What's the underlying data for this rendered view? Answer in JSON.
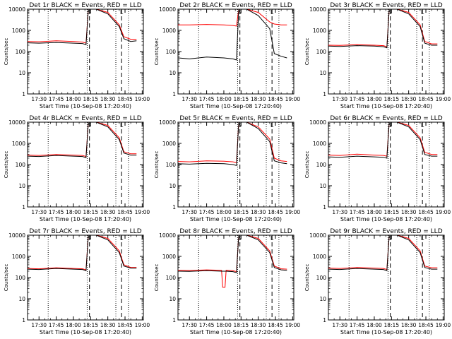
{
  "chart_data": [
    {
      "type": "line",
      "title": "Det 1r BLACK = Events, RED = LLD",
      "xlabel": "Start Time (10-Sep-08 17:20:40)",
      "ylabel": "Counts/sec",
      "yscale": "log",
      "ylim": [
        1,
        10000
      ],
      "x_ticks": [
        "17:30",
        "17:45",
        "18:00",
        "18:15",
        "18:30",
        "18:45",
        "19:00"
      ],
      "y_ticks": [
        "1",
        "10",
        "100",
        "1000",
        "10000"
      ],
      "markers": [
        "S",
        "L"
      ],
      "grid": false,
      "legend": "none",
      "series": [
        {
          "name": "Events",
          "color": "#000000",
          "x": [
            "17:20",
            "17:30",
            "17:45",
            "18:00",
            "18:08",
            "18:11",
            "18:13",
            "18:20",
            "18:30",
            "18:40",
            "18:44",
            "18:50",
            "18:55"
          ],
          "values": [
            260,
            250,
            270,
            250,
            240,
            210,
            10000,
            10000,
            6000,
            1500,
            400,
            300,
            320
          ]
        },
        {
          "name": "LLD",
          "color": "#ff0000",
          "x": [
            "17:20",
            "17:30",
            "17:45",
            "18:00",
            "18:08",
            "18:11",
            "18:13",
            "18:20",
            "18:30",
            "18:40",
            "18:44",
            "18:50",
            "18:55"
          ],
          "values": [
            300,
            290,
            320,
            300,
            280,
            250,
            10000,
            10000,
            7000,
            1800,
            500,
            380,
            380
          ]
        }
      ]
    },
    {
      "type": "line",
      "title": "Det 2r BLACK = Events, RED = LLD",
      "xlabel": "Start Time (10-Sep-08 17:20:40)",
      "ylabel": "Counts/sec",
      "yscale": "log",
      "ylim": [
        1,
        10000
      ],
      "x_ticks": [
        "17:30",
        "17:45",
        "18:00",
        "18:15",
        "18:30",
        "18:45",
        "19:00"
      ],
      "y_ticks": [
        "1",
        "10",
        "100",
        "1000",
        "10000"
      ],
      "markers": [
        "S",
        "L"
      ],
      "grid": false,
      "legend": "none",
      "series": [
        {
          "name": "Events",
          "color": "#000000",
          "x": [
            "17:20",
            "17:30",
            "17:45",
            "18:00",
            "18:08",
            "18:11",
            "18:13",
            "18:20",
            "18:30",
            "18:40",
            "18:44",
            "18:50",
            "18:55"
          ],
          "values": [
            50,
            45,
            55,
            50,
            45,
            40,
            10000,
            10000,
            5000,
            1200,
            80,
            60,
            50
          ]
        },
        {
          "name": "LLD",
          "color": "#ff0000",
          "x": [
            "17:20",
            "17:30",
            "17:45",
            "18:00",
            "18:08",
            "18:11",
            "18:13",
            "18:20",
            "18:30",
            "18:40",
            "18:44",
            "18:50",
            "18:55"
          ],
          "values": [
            1800,
            1800,
            1900,
            1800,
            1700,
            1600,
            10000,
            10000,
            7000,
            2500,
            2000,
            1800,
            1800
          ]
        }
      ]
    },
    {
      "type": "line",
      "title": "Det 3r BLACK = Events, RED = LLD",
      "xlabel": "Start Time (10-Sep-08 17:20:40)",
      "ylabel": "Counts/sec",
      "yscale": "log",
      "ylim": [
        1,
        10000
      ],
      "x_ticks": [
        "17:30",
        "17:45",
        "18:00",
        "18:15",
        "18:30",
        "18:45",
        "19:00"
      ],
      "y_ticks": [
        "1",
        "10",
        "100",
        "1000",
        "10000"
      ],
      "markers": [
        "S",
        "L"
      ],
      "grid": false,
      "legend": "none",
      "series": [
        {
          "name": "Events",
          "color": "#000000",
          "x": [
            "17:20",
            "17:30",
            "17:45",
            "18:00",
            "18:08",
            "18:11",
            "18:13",
            "18:20",
            "18:30",
            "18:40",
            "18:44",
            "18:50",
            "18:55"
          ],
          "values": [
            180,
            175,
            190,
            180,
            170,
            150,
            10000,
            10000,
            6000,
            1500,
            250,
            200,
            200
          ]
        },
        {
          "name": "LLD",
          "color": "#ff0000",
          "x": [
            "17:20",
            "17:30",
            "17:45",
            "18:00",
            "18:08",
            "18:11",
            "18:13",
            "18:20",
            "18:30",
            "18:40",
            "18:44",
            "18:50",
            "18:55"
          ],
          "values": [
            200,
            195,
            210,
            200,
            190,
            170,
            10000,
            10000,
            7000,
            1800,
            300,
            230,
            230
          ]
        }
      ]
    },
    {
      "type": "line",
      "title": "Det 4r BLACK = Events, RED = LLD",
      "xlabel": "Start Time (10-Sep-08 17:20:40)",
      "ylabel": "Counts/sec",
      "yscale": "log",
      "ylim": [
        1,
        10000
      ],
      "x_ticks": [
        "17:30",
        "17:45",
        "18:00",
        "18:15",
        "18:30",
        "18:45",
        "19:00"
      ],
      "y_ticks": [
        "1",
        "10",
        "100",
        "1000",
        "10000"
      ],
      "markers": [
        "S",
        "L"
      ],
      "grid": false,
      "legend": "none",
      "series": [
        {
          "name": "Events",
          "color": "#000000",
          "x": [
            "17:20",
            "17:30",
            "17:45",
            "18:00",
            "18:08",
            "18:11",
            "18:13",
            "18:20",
            "18:30",
            "18:40",
            "18:44",
            "18:50",
            "18:55"
          ],
          "values": [
            250,
            240,
            270,
            250,
            240,
            210,
            10000,
            10000,
            6000,
            1500,
            350,
            280,
            280
          ]
        },
        {
          "name": "LLD",
          "color": "#ff0000",
          "x": [
            "17:20",
            "17:30",
            "17:45",
            "18:00",
            "18:08",
            "18:11",
            "18:13",
            "18:20",
            "18:30",
            "18:40",
            "18:44",
            "18:50",
            "18:55"
          ],
          "values": [
            280,
            270,
            300,
            280,
            270,
            240,
            10000,
            10000,
            7000,
            1800,
            400,
            320,
            320
          ]
        }
      ]
    },
    {
      "type": "line",
      "title": "Det 5r BLACK = Events, RED = LLD",
      "xlabel": "Start Time (10-Sep-08 17:20:40)",
      "ylabel": "Counts/sec",
      "yscale": "log",
      "ylim": [
        1,
        10000
      ],
      "x_ticks": [
        "17:30",
        "17:45",
        "18:00",
        "18:15",
        "18:30",
        "18:45",
        "19:00"
      ],
      "y_ticks": [
        "1",
        "10",
        "100",
        "1000",
        "10000"
      ],
      "markers": [
        "S",
        "L"
      ],
      "grid": false,
      "legend": "none",
      "series": [
        {
          "name": "Events",
          "color": "#000000",
          "x": [
            "17:20",
            "17:30",
            "17:45",
            "18:00",
            "18:08",
            "18:11",
            "18:13",
            "18:20",
            "18:30",
            "18:40",
            "18:44",
            "18:50",
            "18:55"
          ],
          "values": [
            110,
            105,
            115,
            110,
            100,
            90,
            10000,
            10000,
            5000,
            1200,
            150,
            120,
            110
          ]
        },
        {
          "name": "LLD",
          "color": "#ff0000",
          "x": [
            "17:20",
            "17:30",
            "17:45",
            "18:00",
            "18:08",
            "18:11",
            "18:13",
            "18:20",
            "18:30",
            "18:40",
            "18:44",
            "18:50",
            "18:55"
          ],
          "values": [
            140,
            135,
            150,
            145,
            135,
            120,
            10000,
            10000,
            6000,
            1600,
            200,
            150,
            140
          ]
        }
      ]
    },
    {
      "type": "line",
      "title": "Det 6r BLACK = Events, RED = LLD",
      "xlabel": "Start Time (10-Sep-08 17:20:40)",
      "ylabel": "Counts/sec",
      "yscale": "log",
      "ylim": [
        1,
        10000
      ],
      "x_ticks": [
        "17:30",
        "17:45",
        "18:00",
        "18:15",
        "18:30",
        "18:45",
        "19:00"
      ],
      "y_ticks": [
        "1",
        "10",
        "100",
        "1000",
        "10000"
      ],
      "markers": [
        "S",
        "L"
      ],
      "grid": false,
      "legend": "none",
      "series": [
        {
          "name": "Events",
          "color": "#000000",
          "x": [
            "17:20",
            "17:30",
            "17:45",
            "18:00",
            "18:08",
            "18:11",
            "18:13",
            "18:20",
            "18:30",
            "18:40",
            "18:44",
            "18:50",
            "18:55"
          ],
          "values": [
            230,
            220,
            250,
            230,
            220,
            200,
            10000,
            10000,
            6000,
            1500,
            300,
            250,
            250
          ]
        },
        {
          "name": "LLD",
          "color": "#ff0000",
          "x": [
            "17:20",
            "17:30",
            "17:45",
            "18:00",
            "18:08",
            "18:11",
            "18:13",
            "18:20",
            "18:30",
            "18:40",
            "18:44",
            "18:50",
            "18:55"
          ],
          "values": [
            280,
            270,
            310,
            280,
            270,
            250,
            10000,
            10000,
            7000,
            1800,
            380,
            300,
            300
          ]
        }
      ]
    },
    {
      "type": "line",
      "title": "Det 7r BLACK = Events, RED = LLD",
      "xlabel": "Start Time (10-Sep-08 17:20:40)",
      "ylabel": "Counts/sec",
      "yscale": "log",
      "ylim": [
        1,
        10000
      ],
      "x_ticks": [
        "17:30",
        "17:45",
        "18:00",
        "18:15",
        "18:30",
        "18:45",
        "19:00"
      ],
      "y_ticks": [
        "1",
        "10",
        "100",
        "1000",
        "10000"
      ],
      "markers": [
        "S",
        "L"
      ],
      "grid": false,
      "legend": "none",
      "series": [
        {
          "name": "Events",
          "color": "#000000",
          "x": [
            "17:20",
            "17:30",
            "17:45",
            "18:00",
            "18:08",
            "18:11",
            "18:13",
            "18:20",
            "18:30",
            "18:40",
            "18:44",
            "18:50",
            "18:55"
          ],
          "values": [
            250,
            240,
            270,
            250,
            240,
            210,
            10000,
            10000,
            6000,
            1500,
            350,
            280,
            280
          ]
        },
        {
          "name": "LLD",
          "color": "#ff0000",
          "x": [
            "17:20",
            "17:30",
            "17:45",
            "18:00",
            "18:08",
            "18:11",
            "18:13",
            "18:20",
            "18:30",
            "18:40",
            "18:44",
            "18:50",
            "18:55"
          ],
          "values": [
            270,
            260,
            290,
            270,
            260,
            230,
            10000,
            10000,
            7000,
            1800,
            400,
            300,
            300
          ]
        }
      ]
    },
    {
      "type": "line",
      "title": "Det 8r BLACK = Events, RED = LLD",
      "xlabel": "Start Time (10-Sep-08 17:20:40)",
      "ylabel": "Counts/sec",
      "yscale": "log",
      "ylim": [
        1,
        10000
      ],
      "x_ticks": [
        "17:30",
        "17:45",
        "18:00",
        "18:15",
        "18:30",
        "18:45",
        "19:00"
      ],
      "y_ticks": [
        "1",
        "10",
        "100",
        "1000",
        "10000"
      ],
      "markers": [
        "S",
        "L"
      ],
      "grid": false,
      "legend": "none",
      "series": [
        {
          "name": "Events",
          "color": "#000000",
          "x": [
            "17:20",
            "17:30",
            "17:45",
            "17:58",
            "17:59",
            "18:01",
            "18:02",
            "18:08",
            "18:11",
            "18:13",
            "18:20",
            "18:30",
            "18:40",
            "18:44",
            "18:50",
            "18:55"
          ],
          "values": [
            200,
            195,
            210,
            200,
            200,
            200,
            200,
            190,
            170,
            10000,
            10000,
            6000,
            1500,
            300,
            230,
            220
          ]
        },
        {
          "name": "LLD",
          "color": "#ff0000",
          "x": [
            "17:20",
            "17:30",
            "17:45",
            "17:58",
            "17:59",
            "18:01",
            "18:02",
            "18:08",
            "18:11",
            "18:13",
            "18:20",
            "18:30",
            "18:40",
            "18:44",
            "18:50",
            "18:55"
          ],
          "values": [
            220,
            215,
            230,
            220,
            35,
            35,
            220,
            210,
            190,
            10000,
            10000,
            7000,
            1800,
            350,
            260,
            250
          ]
        }
      ]
    },
    {
      "type": "line",
      "title": "Det 9r BLACK = Events, RED = LLD",
      "xlabel": "Start Time (10-Sep-08 17:20:40)",
      "ylabel": "Counts/sec",
      "yscale": "log",
      "ylim": [
        1,
        10000
      ],
      "x_ticks": [
        "17:30",
        "17:45",
        "18:00",
        "18:15",
        "18:30",
        "18:45",
        "19:00"
      ],
      "y_ticks": [
        "1",
        "10",
        "100",
        "1000",
        "10000"
      ],
      "markers": [
        "S",
        "L"
      ],
      "grid": false,
      "legend": "none",
      "series": [
        {
          "name": "Events",
          "color": "#000000",
          "x": [
            "17:20",
            "17:30",
            "17:45",
            "18:00",
            "18:08",
            "18:11",
            "18:13",
            "18:20",
            "18:30",
            "18:40",
            "18:44",
            "18:50",
            "18:55"
          ],
          "values": [
            250,
            240,
            270,
            250,
            240,
            210,
            10000,
            10000,
            6000,
            1500,
            300,
            250,
            250
          ]
        },
        {
          "name": "LLD",
          "color": "#ff0000",
          "x": [
            "17:20",
            "17:30",
            "17:45",
            "18:00",
            "18:08",
            "18:11",
            "18:13",
            "18:20",
            "18:30",
            "18:40",
            "18:44",
            "18:50",
            "18:55"
          ],
          "values": [
            280,
            270,
            300,
            280,
            270,
            240,
            10000,
            10000,
            7000,
            1800,
            350,
            290,
            290
          ]
        }
      ]
    }
  ]
}
